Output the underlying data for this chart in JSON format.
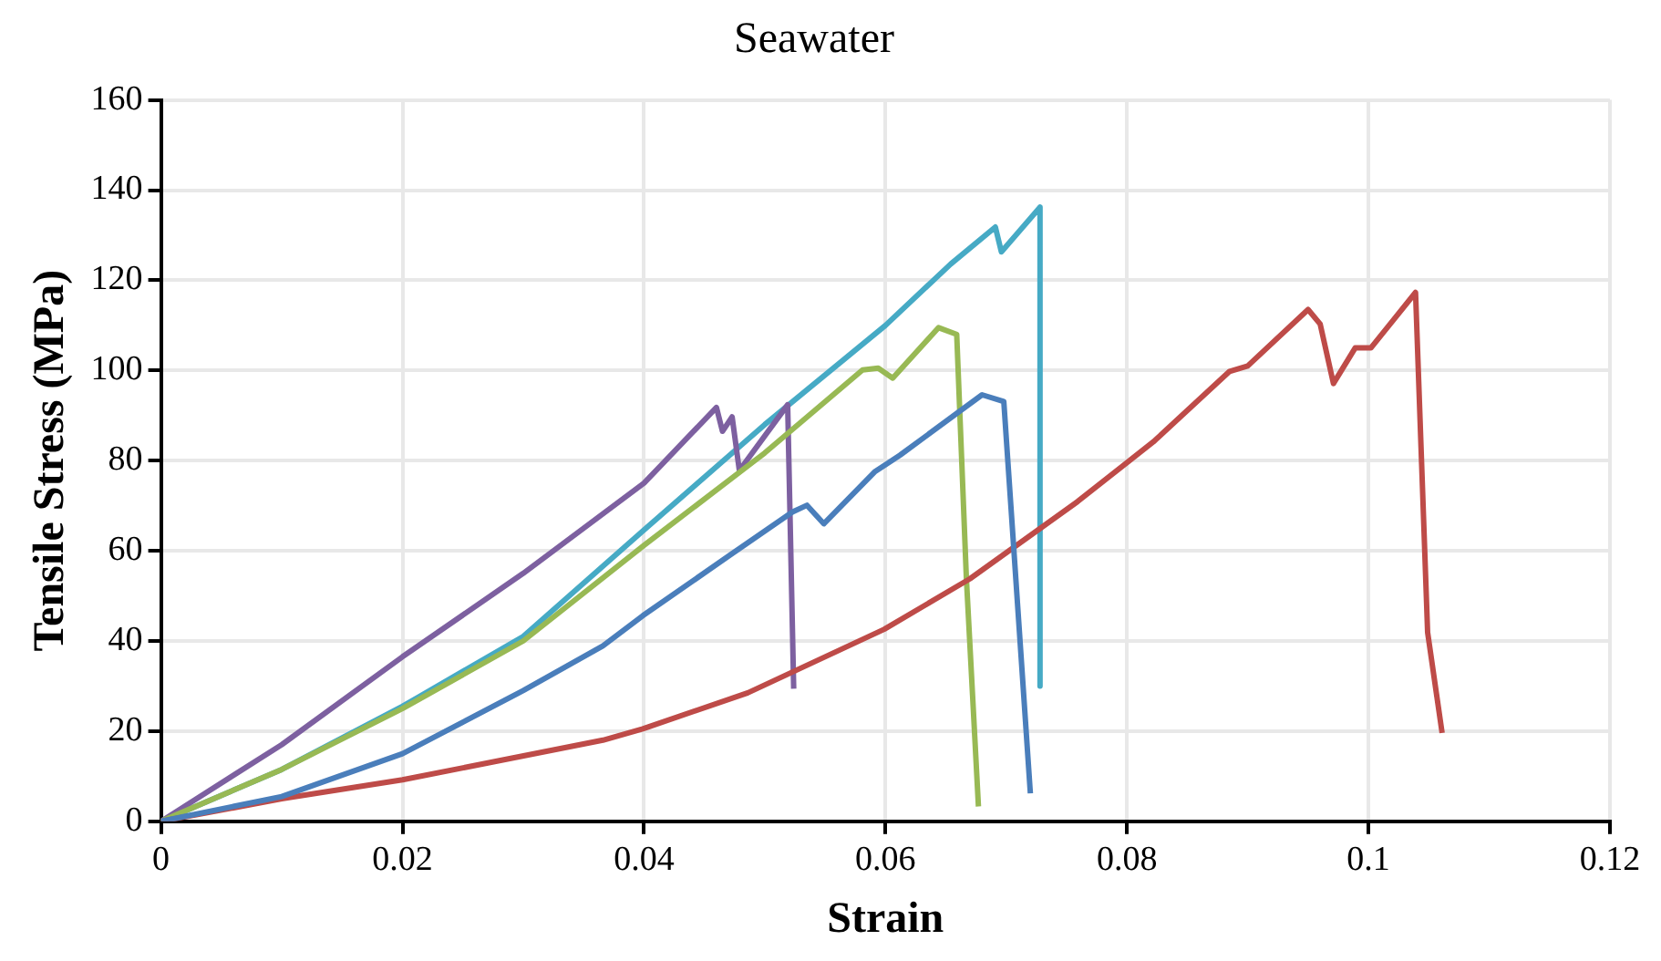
{
  "chart_data": {
    "type": "line",
    "title": "Seawater",
    "xlabel": "Strain",
    "ylabel": "Tensile Stress (MPa)",
    "xlim": [
      0,
      0.12
    ],
    "xticks": [
      0,
      0.02,
      0.04,
      0.06,
      0.08,
      0.1,
      0.12
    ],
    "ylim": [
      0,
      160
    ],
    "yticks": [
      0,
      20,
      40,
      60,
      80,
      100,
      120,
      140,
      160
    ],
    "grid": true,
    "legend": false,
    "marker": "none",
    "line_style": "solid",
    "series": [
      {
        "color": "#4a7ebb",
        "x": [
          0,
          0.01,
          0.02,
          0.03,
          0.0366,
          0.0399,
          0.0471,
          0.0523,
          0.0535,
          0.0549,
          0.0591,
          0.0612,
          0.068,
          0.0698,
          0.072
        ],
        "values": [
          0,
          5.5,
          15,
          29,
          38.9,
          45.6,
          59,
          68.6,
          70.1,
          66,
          77.5,
          81.2,
          94.6,
          93.1,
          6.2
        ]
      },
      {
        "color": "#be4b48",
        "x": [
          0,
          0.01,
          0.02,
          0.0366,
          0.0399,
          0.0486,
          0.0599,
          0.067,
          0.0759,
          0.0822,
          0.0885,
          0.09,
          0.095,
          0.096,
          0.0971,
          0.0989,
          0.1002,
          0.1039,
          0.1049,
          0.1061
        ],
        "values": [
          0,
          5,
          9.2,
          18,
          20.5,
          28.5,
          42.6,
          53.8,
          70.9,
          84.2,
          99.8,
          101,
          113.5,
          110.3,
          97.1,
          105,
          105,
          117.3,
          41.9,
          19.6
        ]
      },
      {
        "color": "#98b954",
        "x": [
          0,
          0.01,
          0.02,
          0.03,
          0.04,
          0.05,
          0.0581,
          0.0594,
          0.0606,
          0.0644,
          0.0659,
          0.0667,
          0.0677
        ],
        "values": [
          0,
          11.5,
          25,
          40,
          61.2,
          81.7,
          100.1,
          100.5,
          98.3,
          109.5,
          108,
          54,
          3.3
        ]
      },
      {
        "color": "#7d60a0",
        "x": [
          0,
          0.01,
          0.02,
          0.03,
          0.04,
          0.046,
          0.0465,
          0.0473,
          0.0479,
          0.0519,
          0.0524
        ],
        "values": [
          0,
          17,
          36.5,
          55,
          75,
          91.8,
          86.5,
          89.7,
          77.8,
          92.4,
          29.4
        ]
      },
      {
        "color": "#46aac5",
        "x": [
          0,
          0.01,
          0.02,
          0.03,
          0.04,
          0.05,
          0.06,
          0.0654,
          0.0691,
          0.0696,
          0.0728,
          0.0728
        ],
        "values": [
          0,
          11.5,
          25.5,
          41,
          64.6,
          88,
          110,
          123.6,
          131.8,
          126.3,
          136.2,
          30
        ]
      }
    ]
  }
}
